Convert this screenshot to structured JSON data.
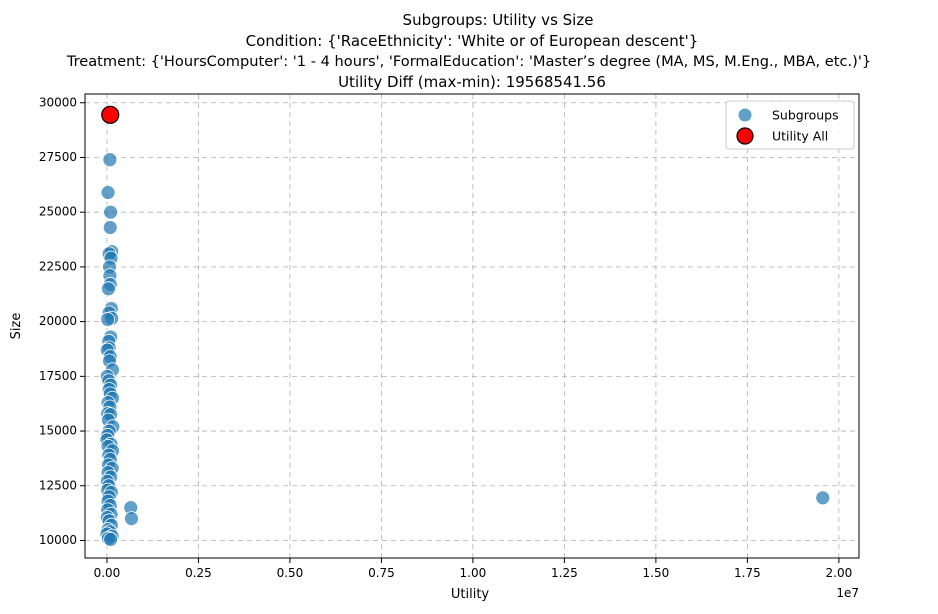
{
  "chart_data": {
    "type": "scatter",
    "title_lines": [
      "Subgroups: Utility vs Size",
      "Condition: {'RaceEthnicity': 'White or of European descent'}",
      "Treatment: {'HoursComputer': '1 - 4 hours', 'FormalEducation': 'Master’s degree (MA, MS, M.Eng., MBA, etc.)'}",
      "Utility Diff (max-min): 19568541.56"
    ],
    "xlabel": "Utility",
    "ylabel": "Size",
    "x_offset_text": "1e7",
    "xlim": [
      -600000,
      20550000
    ],
    "ylim": [
      9200,
      30400
    ],
    "xticks": [
      0,
      2500000,
      5000000,
      7500000,
      10000000,
      12500000,
      15000000,
      17500000,
      20000000
    ],
    "xtick_labels": [
      "0.00",
      "0.25",
      "0.50",
      "0.75",
      "1.00",
      "1.25",
      "1.50",
      "1.75",
      "2.00"
    ],
    "yticks": [
      10000,
      12500,
      15000,
      17500,
      20000,
      22500,
      25000,
      27500,
      30000
    ],
    "ytick_labels": [
      "10000",
      "12500",
      "15000",
      "17500",
      "20000",
      "22500",
      "25000",
      "27500",
      "30000"
    ],
    "grid": true,
    "legend_position": "top-right",
    "series": [
      {
        "name": "Subgroups",
        "color": "#1f77b4",
        "points": [
          [
            80000,
            27400
          ],
          [
            30000,
            25900
          ],
          [
            100000,
            25000
          ],
          [
            90000,
            24300
          ],
          [
            130000,
            23200
          ],
          [
            60000,
            23100
          ],
          [
            110000,
            22900
          ],
          [
            70000,
            22500
          ],
          [
            80000,
            22100
          ],
          [
            90000,
            21700
          ],
          [
            40000,
            21500
          ],
          [
            120000,
            20600
          ],
          [
            60000,
            20400
          ],
          [
            130000,
            20150
          ],
          [
            20000,
            20100
          ],
          [
            100000,
            19300
          ],
          [
            50000,
            19100
          ],
          [
            60000,
            18800
          ],
          [
            10000,
            18700
          ],
          [
            90000,
            18400
          ],
          [
            70000,
            18200
          ],
          [
            150000,
            17800
          ],
          [
            10000,
            17500
          ],
          [
            50000,
            17300
          ],
          [
            100000,
            17100
          ],
          [
            60000,
            16900
          ],
          [
            90000,
            16700
          ],
          [
            150000,
            16500
          ],
          [
            30000,
            16300
          ],
          [
            80000,
            16100
          ],
          [
            20000,
            15800
          ],
          [
            100000,
            15750
          ],
          [
            40000,
            15500
          ],
          [
            160000,
            15200
          ],
          [
            60000,
            15000
          ],
          [
            20000,
            14800
          ],
          [
            0,
            14600
          ],
          [
            110000,
            14400
          ],
          [
            30000,
            14300
          ],
          [
            150000,
            14100
          ],
          [
            50000,
            13900
          ],
          [
            90000,
            13700
          ],
          [
            40000,
            13450
          ],
          [
            140000,
            13300
          ],
          [
            30000,
            13100
          ],
          [
            100000,
            12900
          ],
          [
            10000,
            12700
          ],
          [
            50000,
            12500
          ],
          [
            20000,
            12300
          ],
          [
            120000,
            12200
          ],
          [
            60000,
            12000
          ],
          [
            30000,
            11800
          ],
          [
            90000,
            11600
          ],
          [
            20000,
            11400
          ],
          [
            110000,
            11200
          ],
          [
            10000,
            11050
          ],
          [
            60000,
            10900
          ],
          [
            120000,
            10700
          ],
          [
            30000,
            10500
          ],
          [
            80000,
            10400
          ],
          [
            0,
            10300
          ],
          [
            140000,
            10200
          ],
          [
            40000,
            10100
          ],
          [
            100000,
            10050
          ],
          [
            650000,
            11500
          ],
          [
            670000,
            11000
          ],
          [
            19560000,
            11950
          ]
        ]
      },
      {
        "name": "Utility All",
        "color": "#ff0000",
        "edge_color": "#000000",
        "points": [
          [
            90000,
            29450
          ]
        ]
      }
    ]
  }
}
